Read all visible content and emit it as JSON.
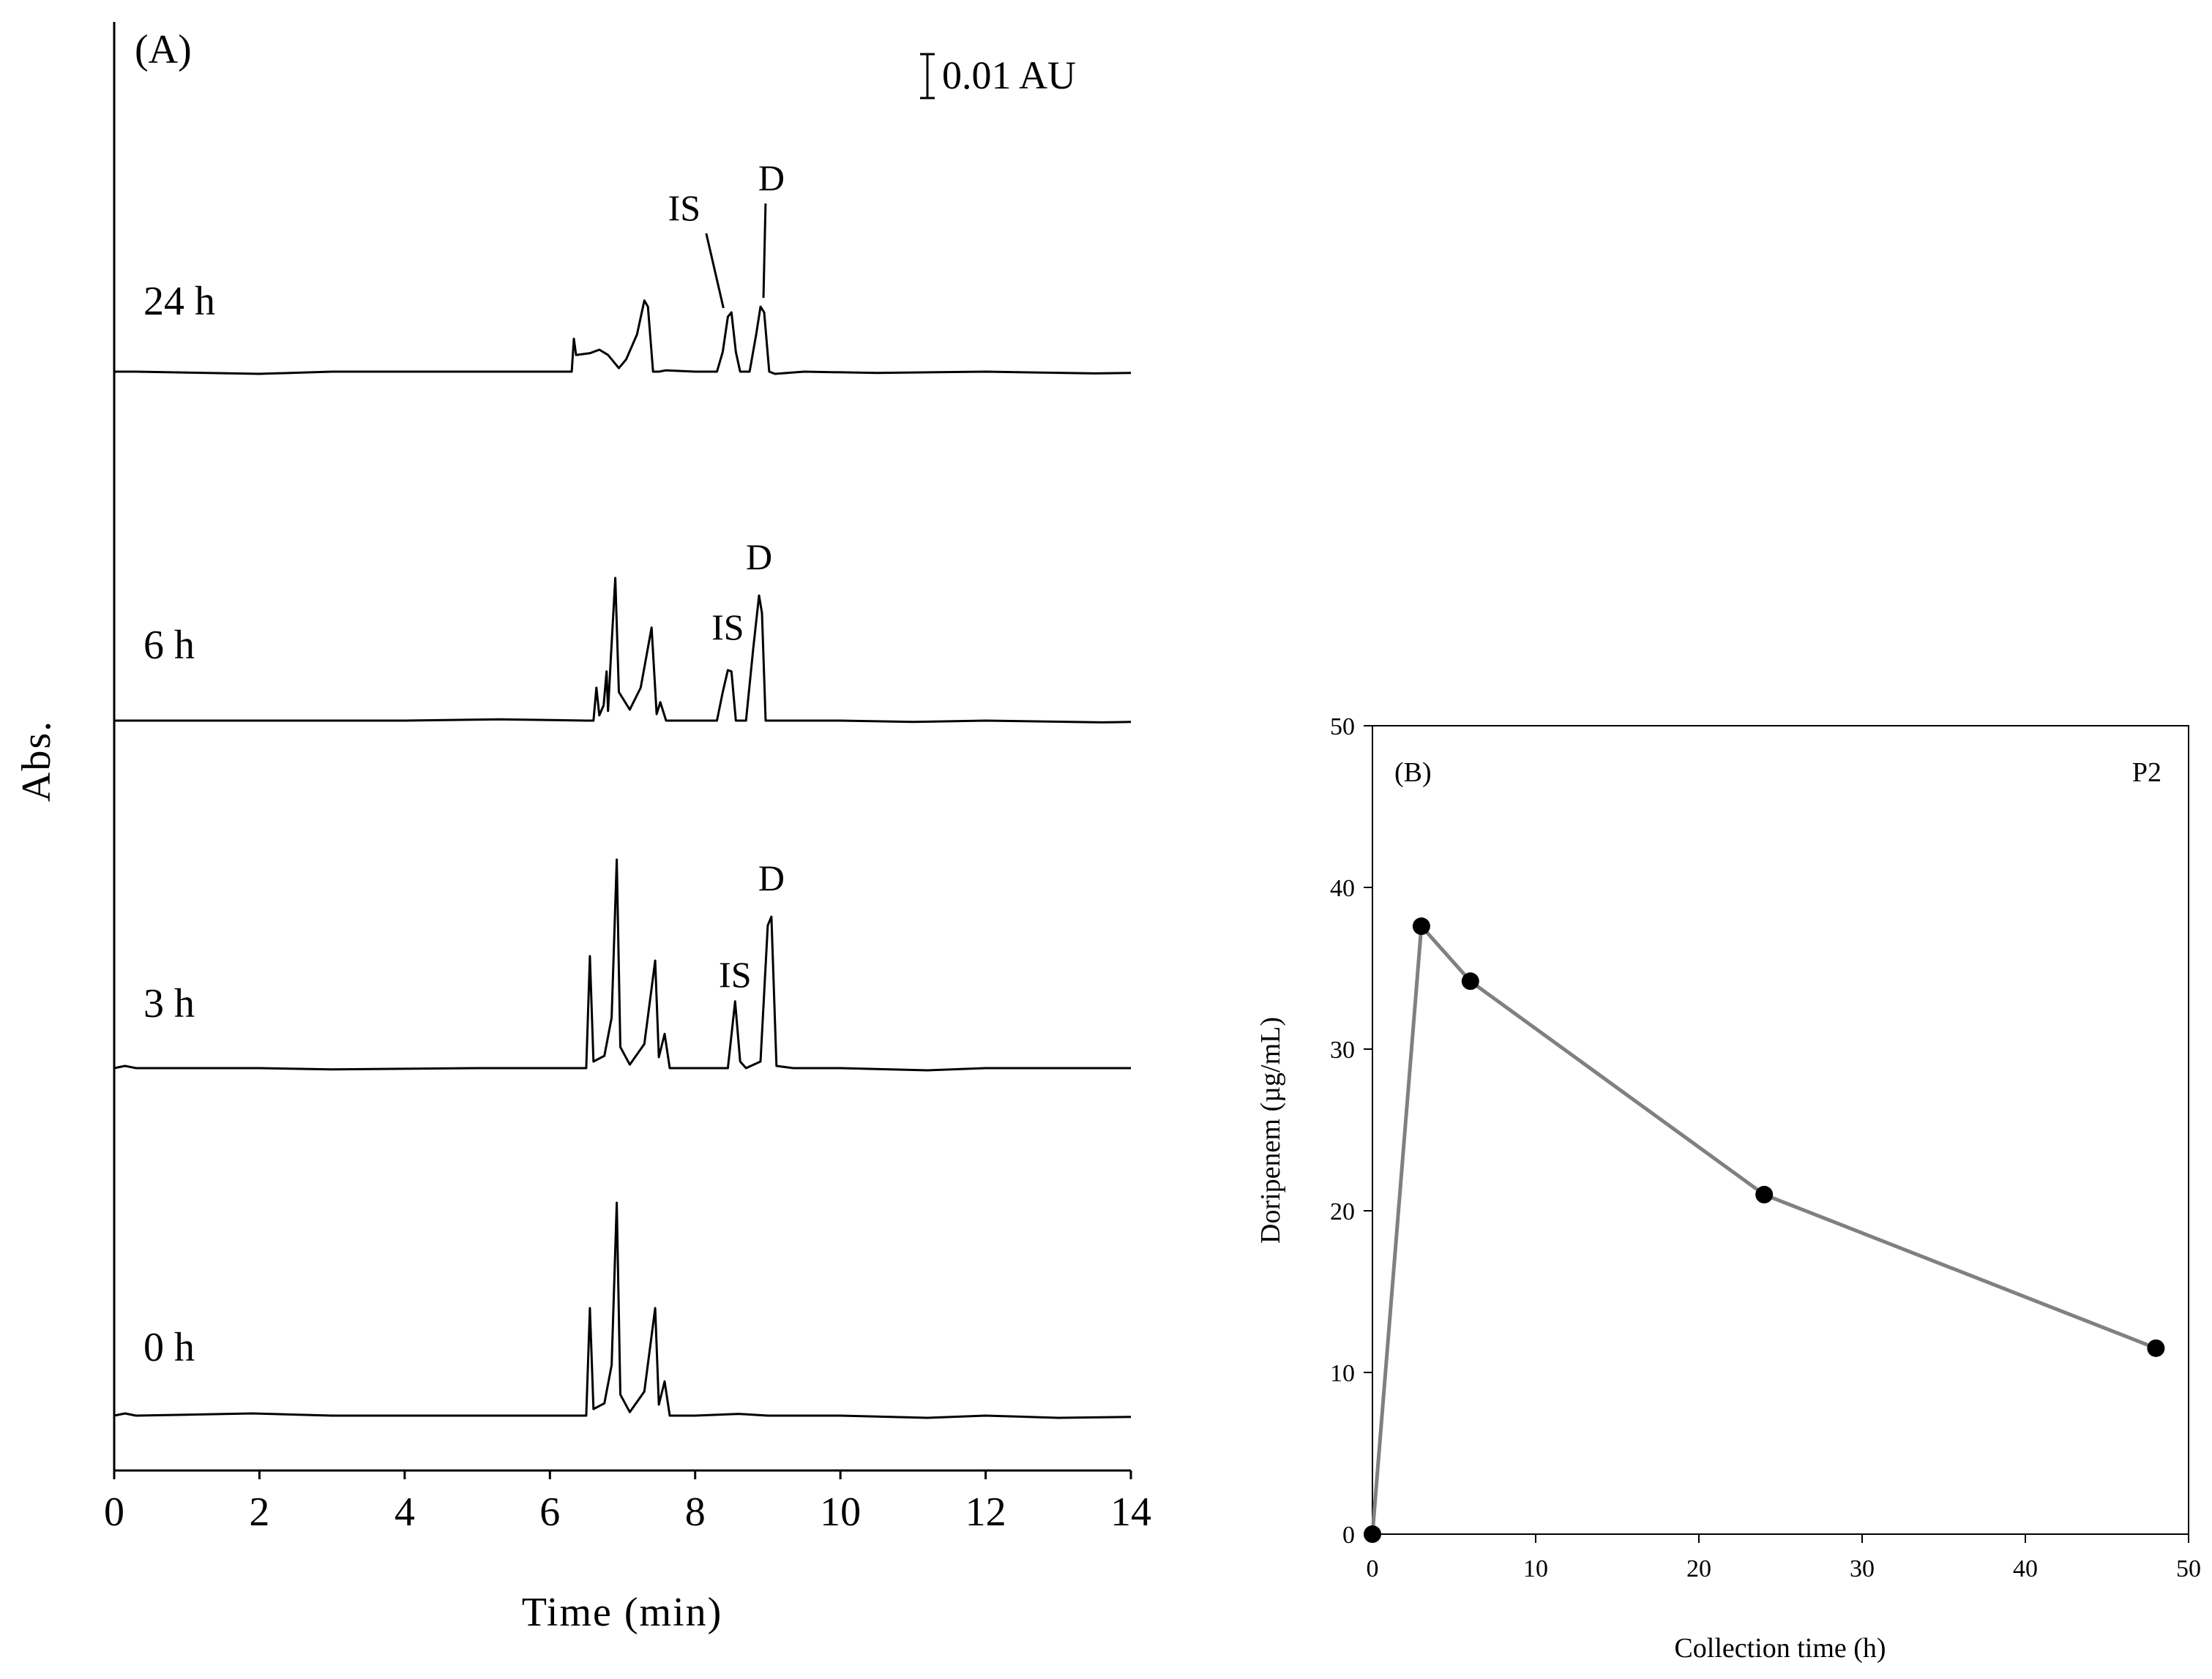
{
  "chart_data": [
    {
      "type": "line",
      "panel_label": "(A)",
      "xlabel": "Time (min)",
      "ylabel": "Abs.",
      "xlim": [
        0,
        14
      ],
      "x_ticks": [
        "0",
        "2",
        "4",
        "6",
        "8",
        "10",
        "12",
        "14"
      ],
      "scale_bar_label": "0.01 AU",
      "series": [
        {
          "name": "24 h",
          "baseline": 0.0,
          "points": [
            [
              0,
              0.0
            ],
            [
              0.12,
              0.0
            ],
            [
              0.3,
              0.0
            ],
            [
              2.0,
              -0.0005
            ],
            [
              3.0,
              0.0
            ],
            [
              4.0,
              0.0
            ],
            [
              5.0,
              0.0
            ],
            [
              6.3,
              0.0
            ],
            [
              6.33,
              0.0075
            ],
            [
              6.36,
              0.0038
            ],
            [
              6.55,
              0.0042
            ],
            [
              6.68,
              0.005
            ],
            [
              6.8,
              0.0038
            ],
            [
              6.95,
              0.0008
            ],
            [
              7.05,
              0.0028
            ],
            [
              7.2,
              0.0085
            ],
            [
              7.3,
              0.0162
            ],
            [
              7.35,
              0.0148
            ],
            [
              7.42,
              0.0
            ],
            [
              7.5,
              0.0
            ],
            [
              7.6,
              0.0003
            ],
            [
              8.0,
              0.0
            ],
            [
              8.3,
              0.0
            ],
            [
              8.38,
              0.0045
            ],
            [
              8.45,
              0.0125
            ],
            [
              8.5,
              0.0135
            ],
            [
              8.56,
              0.0045
            ],
            [
              8.62,
              0.0
            ],
            [
              8.75,
              0.0
            ],
            [
              8.84,
              0.0085
            ],
            [
              8.9,
              0.0148
            ],
            [
              8.95,
              0.0135
            ],
            [
              9.02,
              0.0
            ],
            [
              9.1,
              -0.0005
            ],
            [
              9.5,
              0.0
            ],
            [
              10.5,
              -0.0003
            ],
            [
              12.0,
              0.0
            ],
            [
              13.5,
              -0.0004
            ],
            [
              14.0,
              -0.0003
            ]
          ],
          "labels": [
            {
              "text": "IS",
              "peak_x": 8.45,
              "text_x": 7.85,
              "text_dy": 0.0345,
              "leader": true
            },
            {
              "text": "D",
              "peak_x": 8.9,
              "text_x": 9.05,
              "text_dy": 0.0413,
              "leader": true
            }
          ]
        },
        {
          "name": "6 h",
          "baseline": 0.0,
          "points": [
            [
              0,
              0.0
            ],
            [
              0.3,
              0.0
            ],
            [
              2.0,
              0.0
            ],
            [
              4.0,
              0.0
            ],
            [
              5.3,
              0.0003
            ],
            [
              6.5,
              0.0
            ],
            [
              6.6,
              0.0
            ],
            [
              6.64,
              0.0075
            ],
            [
              6.68,
              0.0012
            ],
            [
              6.74,
              0.0035
            ],
            [
              6.78,
              0.0112
            ],
            [
              6.8,
              0.0022
            ],
            [
              6.84,
              0.0145
            ],
            [
              6.9,
              0.0325
            ],
            [
              6.95,
              0.0065
            ],
            [
              7.1,
              0.0025
            ],
            [
              7.25,
              0.0075
            ],
            [
              7.4,
              0.0212
            ],
            [
              7.47,
              0.0015
            ],
            [
              7.52,
              0.0042
            ],
            [
              7.6,
              0.0
            ],
            [
              8.0,
              0.0
            ],
            [
              8.3,
              0.0
            ],
            [
              8.38,
              0.0065
            ],
            [
              8.45,
              0.0115
            ],
            [
              8.5,
              0.0112
            ],
            [
              8.56,
              0.0
            ],
            [
              8.7,
              0.0
            ],
            [
              8.8,
              0.0165
            ],
            [
              8.88,
              0.0285
            ],
            [
              8.92,
              0.0245
            ],
            [
              8.97,
              0.0
            ],
            [
              9.1,
              0.0
            ],
            [
              10.0,
              0.0
            ],
            [
              11.0,
              -0.0003
            ],
            [
              12.0,
              0.0
            ],
            [
              13.6,
              -0.0004
            ],
            [
              14.0,
              -0.0003
            ]
          ],
          "labels": [
            {
              "text": "IS",
              "peak_x": 8.45,
              "text_x": 8.45,
              "text_dy": 0.0185,
              "leader": false
            },
            {
              "text": "D",
              "peak_x": 8.88,
              "text_x": 8.88,
              "text_dy": 0.0345,
              "leader": false
            }
          ]
        },
        {
          "name": "3 h",
          "baseline": 0.0,
          "points": [
            [
              0,
              0.0
            ],
            [
              0.15,
              0.0005
            ],
            [
              0.3,
              0.0
            ],
            [
              2.0,
              0.0
            ],
            [
              3.0,
              -0.0003
            ],
            [
              5.0,
              0.0
            ],
            [
              6.5,
              0.0
            ],
            [
              6.55,
              0.0255
            ],
            [
              6.6,
              0.0015
            ],
            [
              6.75,
              0.0028
            ],
            [
              6.85,
              0.0115
            ],
            [
              6.92,
              0.0475
            ],
            [
              6.97,
              0.0048
            ],
            [
              7.1,
              0.0008
            ],
            [
              7.3,
              0.0055
            ],
            [
              7.45,
              0.0245
            ],
            [
              7.5,
              0.0025
            ],
            [
              7.58,
              0.0078
            ],
            [
              7.65,
              0.0
            ],
            [
              8.0,
              0.0
            ],
            [
              8.45,
              0.0
            ],
            [
              8.55,
              0.0152
            ],
            [
              8.62,
              0.0015
            ],
            [
              8.7,
              0.0
            ],
            [
              8.9,
              0.0015
            ],
            [
              9.0,
              0.0325
            ],
            [
              9.05,
              0.0345
            ],
            [
              9.12,
              0.0005
            ],
            [
              9.35,
              0.0
            ],
            [
              10.0,
              0.0
            ],
            [
              11.2,
              -0.0005
            ],
            [
              12.0,
              0.0
            ],
            [
              13.5,
              0.0
            ],
            [
              14.0,
              0.0
            ]
          ],
          "labels": [
            {
              "text": "IS",
              "peak_x": 8.55,
              "text_x": 8.55,
              "text_dy": 0.0185,
              "leader": false
            },
            {
              "text": "D",
              "peak_x": 9.05,
              "text_x": 9.05,
              "text_dy": 0.0405,
              "leader": false
            }
          ]
        },
        {
          "name": "0 h",
          "baseline": 0.0,
          "points": [
            [
              0,
              0.0
            ],
            [
              0.15,
              0.0005
            ],
            [
              0.3,
              0.0
            ],
            [
              1.9,
              0.0005
            ],
            [
              3.0,
              0.0
            ],
            [
              5.2,
              0.0
            ],
            [
              6.5,
              0.0
            ],
            [
              6.55,
              0.0245
            ],
            [
              6.6,
              0.0015
            ],
            [
              6.75,
              0.0028
            ],
            [
              6.85,
              0.0115
            ],
            [
              6.92,
              0.0485
            ],
            [
              6.97,
              0.0048
            ],
            [
              7.1,
              0.0008
            ],
            [
              7.3,
              0.0055
            ],
            [
              7.45,
              0.0245
            ],
            [
              7.5,
              0.0025
            ],
            [
              7.58,
              0.0078
            ],
            [
              7.65,
              0.0
            ],
            [
              8.0,
              0.0
            ],
            [
              8.6,
              0.0004
            ],
            [
              9.0,
              0.0
            ],
            [
              10.0,
              0.0
            ],
            [
              11.2,
              -0.0005
            ],
            [
              12.0,
              0.0
            ],
            [
              13.0,
              -0.0005
            ],
            [
              14.0,
              -0.0003
            ]
          ],
          "labels": []
        }
      ]
    },
    {
      "type": "line",
      "panel_label": "(B)",
      "annotation": "P2",
      "xlabel": "Collection time (h)",
      "ylabel": "Doripenem (µg/mL)",
      "xlim": [
        0,
        50
      ],
      "ylim": [
        0,
        50
      ],
      "x_ticks": [
        "0",
        "10",
        "20",
        "30",
        "40",
        "50"
      ],
      "y_ticks": [
        "0",
        "10",
        "20",
        "30",
        "40",
        "50"
      ],
      "x": [
        0,
        3,
        6,
        24,
        48
      ],
      "y": [
        0,
        37.6,
        34.2,
        21.0,
        11.5
      ],
      "line_color": "#808080",
      "marker_color": "#000000"
    }
  ]
}
